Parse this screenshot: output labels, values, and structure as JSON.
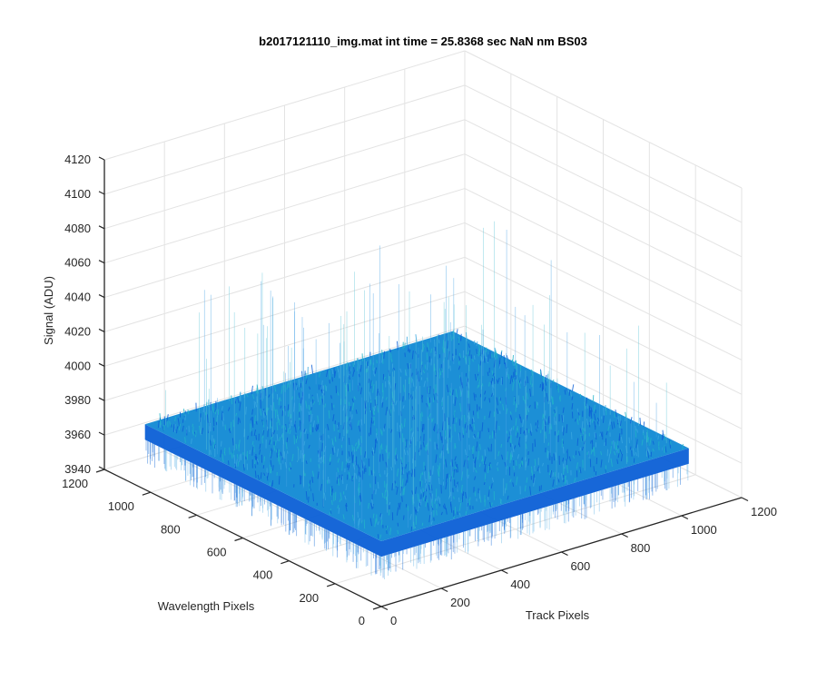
{
  "chart_data": {
    "type": "surface",
    "title": "b2017121110_img.mat int time = 25.8368 sec  NaN nm BS03",
    "xlabel": "Track Pixels",
    "ylabel": "Wavelength Pixels",
    "zlabel": "Signal (ADU)",
    "xlim": [
      0,
      1200
    ],
    "ylim": [
      0,
      1200
    ],
    "zlim": [
      3940,
      4120
    ],
    "x_ticks": [
      "0",
      "200",
      "400",
      "600",
      "800",
      "1000",
      "1200"
    ],
    "y_ticks": [
      "0",
      "200",
      "400",
      "600",
      "800",
      "1000",
      "1200"
    ],
    "z_ticks": [
      "3940",
      "3960",
      "3980",
      "4000",
      "4020",
      "4040",
      "4060",
      "4080",
      "4100",
      "4120"
    ],
    "grid": true,
    "surface": {
      "x_range": [
        0,
        1024
      ],
      "y_range": [
        0,
        1024
      ],
      "mean_signal": 3975,
      "noise_spread": [
        3955,
        4060
      ],
      "colormap": "parula",
      "color_low": "#0b5fd6",
      "color_mid": "#1c8fd6",
      "color_high": "#22b3c9"
    }
  }
}
